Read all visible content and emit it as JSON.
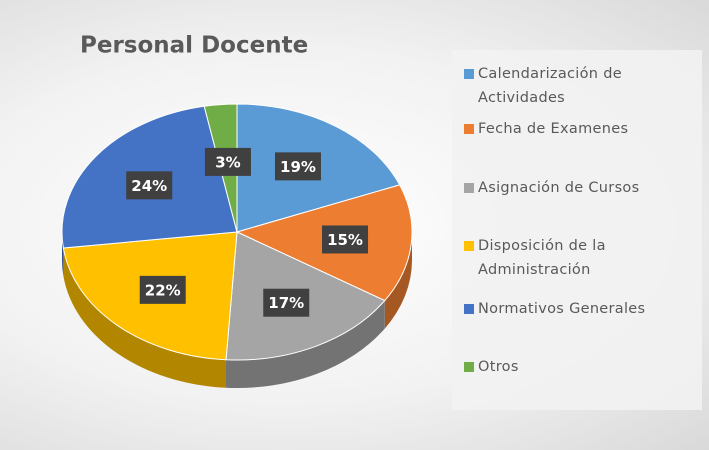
{
  "chart_data": {
    "type": "pie",
    "title": "Personal Docente",
    "categories": [
      "Calendarización de Actividades",
      "Fecha de Examenes",
      "Asignación de Cursos",
      "Disposición de la Administración",
      "Normativos Generales",
      "Otros"
    ],
    "values": [
      19,
      15,
      17,
      22,
      24,
      3
    ],
    "value_labels": [
      "19%",
      "15%",
      "17%",
      "22%",
      "24%",
      "3%"
    ],
    "colors": [
      "#5b9bd5",
      "#ed7d31",
      "#a5a5a5",
      "#ffc000",
      "#4472c4",
      "#70ad47"
    ],
    "legend": "right"
  }
}
